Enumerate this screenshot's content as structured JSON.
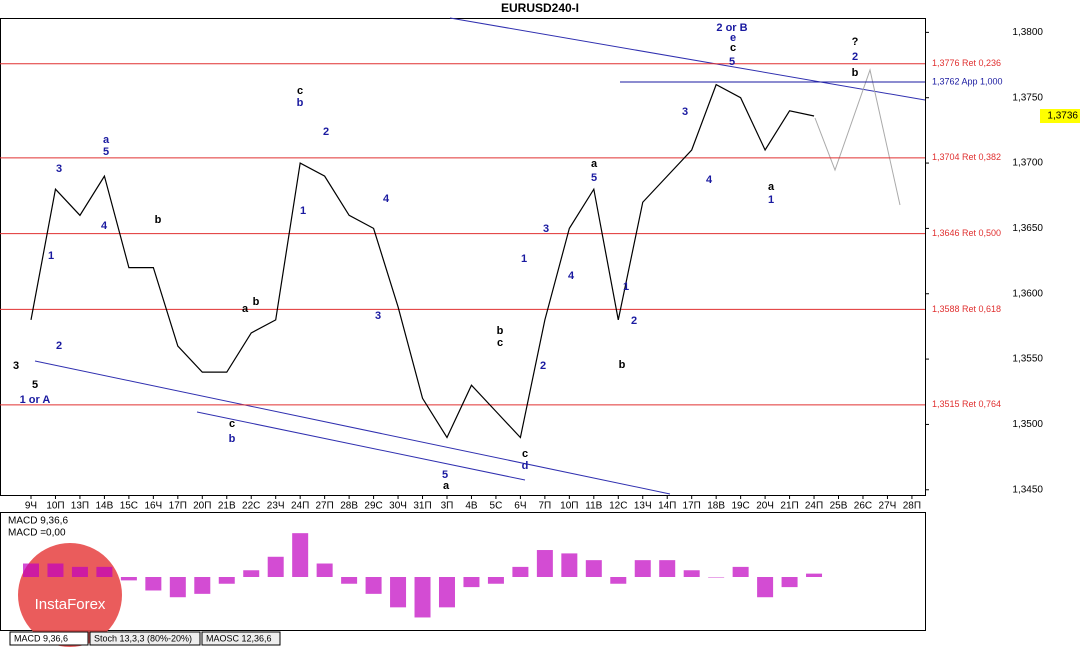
{
  "chart_data": {
    "type": "line",
    "title": "EURUSD240-I",
    "categories": [
      "9Ч",
      "10П",
      "13П",
      "14В",
      "15С",
      "16Ч",
      "17П",
      "20П",
      "21В",
      "22С",
      "23Ч",
      "24П",
      "27П",
      "28В",
      "29С",
      "30Ч",
      "31П",
      "3П",
      "4В",
      "5С",
      "6Ч",
      "7П",
      "10П",
      "11В",
      "12С",
      "13Ч",
      "14П",
      "17П",
      "18В",
      "19С",
      "20Ч",
      "21П",
      "24П",
      "25В",
      "26С",
      "27Ч",
      "28П"
    ],
    "series": [
      {
        "name": "EURUSD240-I",
        "color": "#000000",
        "values": [
          1.358,
          1.368,
          1.366,
          1.369,
          1.362,
          1.362,
          1.356,
          1.354,
          1.354,
          1.357,
          1.358,
          1.37,
          1.369,
          1.366,
          1.365,
          1.359,
          1.352,
          1.349,
          1.353,
          1.351,
          1.349,
          1.358,
          1.365,
          1.368,
          1.358,
          1.367,
          1.369,
          1.371,
          1.376,
          1.375,
          1.371,
          1.374,
          1.3736,
          null,
          null,
          null,
          null
        ]
      }
    ],
    "ylim": [
      1.3446,
      1.3811
    ],
    "yticks": [
      {
        "value": 1.345,
        "label": "1,3450"
      },
      {
        "value": 1.35,
        "label": "1,3500"
      },
      {
        "value": 1.355,
        "label": "1,3550"
      },
      {
        "value": 1.36,
        "label": "1,3600"
      },
      {
        "value": 1.365,
        "label": "1,3650"
      },
      {
        "value": 1.37,
        "label": "1,3700"
      },
      {
        "value": 1.375,
        "label": "1,3750"
      },
      {
        "value": 1.38,
        "label": "1,3800"
      }
    ],
    "levels": [
      {
        "value": 1.3776,
        "label": "1,3776 Ret 0,236",
        "color": "#e03030"
      },
      {
        "value": 1.3762,
        "label": "1,3762 App 1,000",
        "color": "#1a1aa0"
      },
      {
        "value": 1.3704,
        "label": "1,3704 Ret 0,382",
        "color": "#e03030"
      },
      {
        "value": 1.3646,
        "label": "1,3646 Ret 0,500",
        "color": "#e03030"
      },
      {
        "value": 1.3588,
        "label": "1,3588 Ret 0,618",
        "color": "#e03030"
      },
      {
        "value": 1.3515,
        "label": "1,3515 Ret 0,764",
        "color": "#e03030"
      }
    ],
    "last_price": {
      "value": 1.3736,
      "label": "1,3736"
    },
    "annotations": [
      "2 or B",
      "e",
      "c",
      "5",
      "?",
      "2",
      "b",
      "c",
      "b",
      "a",
      "5",
      "b",
      "1 or A",
      "5",
      "3",
      "a",
      "b",
      "c",
      "b",
      "5",
      "a",
      "c",
      "d",
      "b",
      "c",
      "a",
      "5",
      "b",
      "3",
      "4",
      "a",
      "1",
      "3",
      "2",
      "1",
      "1",
      "2",
      "3",
      "4",
      "1",
      "2",
      "4",
      "3",
      "4",
      "2",
      "1"
    ],
    "indicator": {
      "title": "MACD 9,36,6",
      "value_text": "MACD =0,00",
      "color": "#c000c0",
      "ylim": [
        -0.0035,
        0.0035
      ],
      "values": [
        0.0008,
        0.0008,
        0.0006,
        0.0006,
        -0.0002,
        -0.0008,
        -0.0012,
        -0.001,
        -0.0004,
        0.0004,
        0.0012,
        0.0026,
        0.0008,
        -0.0004,
        -0.001,
        -0.0018,
        -0.0024,
        -0.0018,
        -0.0006,
        -0.0004,
        0.0006,
        0.0016,
        0.0014,
        0.001,
        -0.0004,
        0.001,
        0.001,
        0.0004,
        0.0,
        0.0006,
        -0.0012,
        -0.0006,
        0.0002,
        null,
        null,
        null,
        null
      ]
    },
    "tabs": [
      "MACD 9,36,6",
      "Stoch 13,3,3 (80%-20%)",
      "MAOSC 12,36,6"
    ],
    "logo": "InstaForex"
  }
}
